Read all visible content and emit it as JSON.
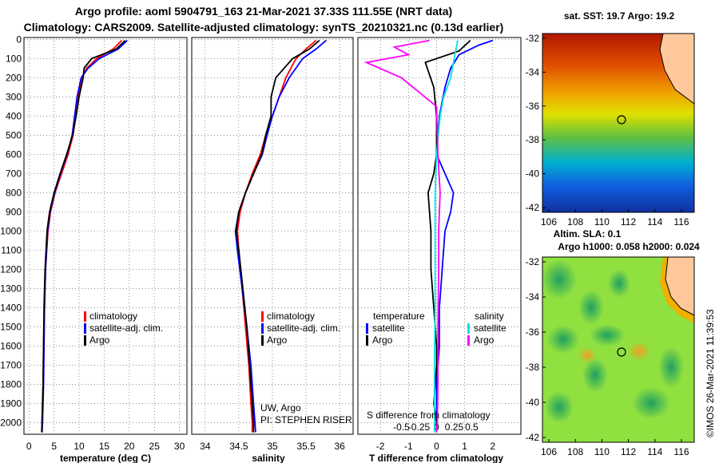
{
  "title_line1": "Argo profile: aoml 5904791_163 21-Mar-2021 37.33S 111.55E (NRT data)",
  "title_line2": "Climatology: CARS2009. Satellite-adjusted climatology: synTS_20210321.nc (0.13d earlier)",
  "colors": {
    "climatology": "#ff0000",
    "satellite": "#0000ff",
    "argo": "#000000",
    "argo_salinity_diff": "#ff00ff",
    "satellite_salinity_diff": "#00e5e5"
  },
  "depth_ticks": [
    0,
    100,
    200,
    300,
    400,
    500,
    600,
    700,
    800,
    900,
    1000,
    1100,
    1200,
    1300,
    1400,
    1500,
    1600,
    1700,
    1800,
    1900,
    2000
  ],
  "panels": {
    "temperature": {
      "xlabel": "temperature (deg C)",
      "xticks": [
        "0",
        "5",
        "10",
        "15",
        "20",
        "25",
        "30"
      ],
      "legend": [
        "climatology",
        "satellite-adj. clim.",
        "Argo"
      ]
    },
    "salinity": {
      "xlabel": "salinity",
      "xticks": [
        "34",
        "34.5",
        "35",
        "35.5",
        "36"
      ],
      "legend": [
        "climatology",
        "satellite-adj. clim.",
        "Argo"
      ],
      "credit1": "UW, Argo",
      "credit2": "PI: STEPHEN RISER"
    },
    "difference": {
      "xlabel": "T difference from climatology",
      "xticks_top": [
        "-0.5",
        "-0.25",
        "0",
        "0.25",
        "0.5"
      ],
      "xticks_bottom": [
        "-2",
        "-1",
        "0",
        "1",
        "2"
      ],
      "s_label": "S difference from climatology",
      "legend_left_title": "temperature",
      "legend_right_title": "salinity",
      "legend_left": [
        "satellite",
        "Argo"
      ],
      "legend_right": [
        "satellite",
        "Argo"
      ]
    }
  },
  "maps": {
    "sst": {
      "title": "sat. SST: 19.7 Argo: 19.2",
      "yticks": [
        "-32",
        "-34",
        "-36",
        "-38",
        "-40",
        "-42"
      ],
      "xticks": [
        "106",
        "108",
        "110",
        "112",
        "114",
        "116"
      ]
    },
    "sla": {
      "title1": "Altim. SLA: 0.1",
      "title2": "Argo h1000: 0.058 h2000: 0.024",
      "yticks": [
        "-32",
        "-34",
        "-36",
        "-38",
        "-40",
        "-42"
      ],
      "xticks": [
        "106",
        "108",
        "110",
        "112",
        "114",
        "116"
      ]
    },
    "watermark": "©IMOS 26-Mar-2021 11:39:53"
  },
  "chart_data": [
    {
      "type": "line",
      "xlabel": "temperature (deg C)",
      "xlim": [
        -1,
        31.5
      ],
      "ylim": [
        2060,
        -10
      ],
      "series": [
        {
          "name": "climatology",
          "x": [
            18.5,
            16.8,
            13.5,
            11.5,
            10.5,
            9.8,
            9.3,
            8.8,
            7.8,
            6.5,
            5.2,
            4.3,
            3.8,
            3.3,
            3.1,
            2.9,
            2.8,
            2.7,
            2.6,
            2.5
          ],
          "y": [
            5,
            50,
            100,
            150,
            200,
            300,
            400,
            500,
            600,
            700,
            800,
            900,
            1000,
            1200,
            1400,
            1600,
            1800,
            1900,
            2000,
            2050
          ]
        },
        {
          "name": "satellite-adj. clim.",
          "x": [
            19.6,
            17.8,
            14.0,
            11.8,
            10.4,
            9.6,
            9.1,
            8.6,
            7.6,
            6.3,
            5.1,
            4.2,
            3.7,
            3.3,
            3.1,
            3.0,
            2.9,
            2.8,
            2.7,
            2.6
          ],
          "y": [
            5,
            50,
            100,
            150,
            200,
            300,
            400,
            500,
            600,
            700,
            800,
            900,
            1000,
            1200,
            1400,
            1600,
            1800,
            1900,
            2000,
            2050
          ]
        },
        {
          "name": "Argo",
          "x": [
            19.2,
            17.4,
            12.5,
            11.0,
            10.8,
            10.0,
            9.4,
            8.7,
            7.5,
            6.2,
            5.0,
            4.1,
            3.6,
            3.2,
            3.0,
            2.9,
            2.8,
            2.7,
            2.6,
            2.6
          ],
          "y": [
            5,
            50,
            100,
            150,
            200,
            300,
            400,
            500,
            600,
            700,
            800,
            900,
            1000,
            1200,
            1400,
            1600,
            1800,
            1900,
            2000,
            2050
          ]
        }
      ]
    },
    {
      "type": "line",
      "xlabel": "salinity",
      "xlim": [
        33.8,
        36.2
      ],
      "ylim": [
        2060,
        -10
      ],
      "series": [
        {
          "name": "climatology",
          "x": [
            35.65,
            35.5,
            35.35,
            35.2,
            35.1,
            35.0,
            34.9,
            34.82,
            34.7,
            34.6,
            34.52,
            34.48,
            34.5,
            34.55,
            34.6,
            34.65,
            34.68,
            34.7,
            34.7
          ],
          "y": [
            5,
            50,
            100,
            200,
            300,
            400,
            500,
            600,
            700,
            800,
            900,
            1000,
            1100,
            1300,
            1500,
            1700,
            1900,
            2000,
            2050
          ]
        },
        {
          "name": "satellite-adj. clim.",
          "x": [
            35.8,
            35.65,
            35.45,
            35.25,
            35.1,
            35.0,
            34.92,
            34.85,
            34.72,
            34.6,
            34.5,
            34.45,
            34.48,
            34.55,
            34.62,
            34.68,
            34.72,
            34.74,
            34.75
          ],
          "y": [
            5,
            50,
            100,
            200,
            300,
            400,
            500,
            600,
            700,
            800,
            900,
            1000,
            1100,
            1300,
            1500,
            1700,
            1900,
            2000,
            2050
          ]
        },
        {
          "name": "Argo",
          "x": [
            35.7,
            35.55,
            35.3,
            35.05,
            34.98,
            34.98,
            34.9,
            34.84,
            34.72,
            34.6,
            34.5,
            34.46,
            34.5,
            34.56,
            34.62,
            34.66,
            34.7,
            34.72,
            34.72
          ],
          "y": [
            5,
            50,
            100,
            200,
            300,
            400,
            500,
            600,
            700,
            800,
            900,
            1000,
            1100,
            1300,
            1500,
            1700,
            1900,
            2000,
            2050
          ]
        }
      ]
    },
    {
      "type": "line",
      "xlabel": "T difference from climatology",
      "xlim": [
        -2.8,
        3.0
      ],
      "ylim": [
        2060,
        -10
      ],
      "series": [
        {
          "name": "satellite",
          "x": [
            2.0,
            1.5,
            0.8,
            0.5,
            0.3,
            0.1,
            0.0,
            0.3,
            0.6,
            0.5,
            0.3,
            0.2,
            0.1,
            0.1,
            0.0,
            0.0,
            0.0
          ],
          "y": [
            5,
            30,
            80,
            150,
            250,
            400,
            600,
            700,
            800,
            900,
            1000,
            1200,
            1400,
            1600,
            1800,
            2000,
            2050
          ]
        },
        {
          "name": "Argo",
          "x": [
            1.2,
            0.8,
            -0.4,
            -0.1,
            0.0,
            0.0,
            -0.1,
            -0.3,
            -0.2,
            -0.2,
            -0.1,
            0.0,
            0.0,
            -0.1,
            0.0,
            0.0
          ],
          "y": [
            5,
            60,
            120,
            250,
            400,
            600,
            700,
            800,
            1000,
            1200,
            1400,
            1600,
            1700,
            1900,
            2000,
            2050
          ]
        },
        {
          "name": "satellite salinity",
          "x": [
            0.3,
            0.25,
            0.2,
            0.1,
            0.05,
            0.0,
            -0.02,
            -0.02,
            -0.02,
            -0.03,
            -0.03,
            -0.03
          ],
          "y": [
            5,
            100,
            200,
            300,
            400,
            600,
            800,
            1000,
            1400,
            1700,
            2000,
            2050
          ]
        },
        {
          "name": "Argo salinity",
          "x": [
            -0.1,
            -0.6,
            -0.4,
            -1.0,
            -0.5,
            0.0,
            0.02,
            0.05,
            0.03,
            0.03,
            0.02,
            0.02,
            0.01,
            0.0
          ],
          "y": [
            5,
            40,
            80,
            120,
            200,
            350,
            600,
            800,
            1000,
            1200,
            1500,
            1800,
            2000,
            2050
          ]
        }
      ]
    }
  ]
}
